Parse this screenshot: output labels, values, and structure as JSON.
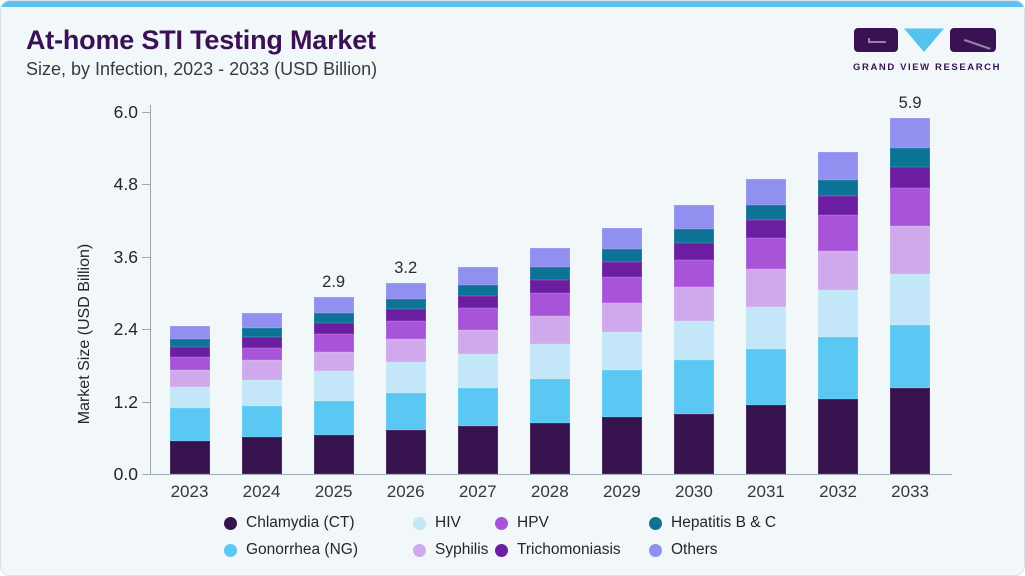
{
  "header": {
    "title": "At-home STI Testing Market",
    "subtitle": "Size, by Infection, 2023 - 2033 (USD Billion)"
  },
  "logo": {
    "text": "GRAND VIEW RESEARCH"
  },
  "chart_data": {
    "type": "bar",
    "stacked": true,
    "title": "At-home STI Testing Market Size, by Infection, 2023 - 2033 (USD Billion)",
    "xlabel": "",
    "ylabel": "Market Size (USD Billion)",
    "ylim": [
      0,
      6.0
    ],
    "yticks": [
      "0.0",
      "1.2",
      "2.4",
      "3.6",
      "4.8",
      "6.0"
    ],
    "grid": false,
    "legend_position": "bottom",
    "categories": [
      "2023",
      "2024",
      "2025",
      "2026",
      "2027",
      "2028",
      "2029",
      "2030",
      "2031",
      "2032",
      "2033"
    ],
    "series": [
      {
        "name": "Chlamydia (CT)",
        "color": "#36124E",
        "values": [
          0.55,
          0.61,
          0.65,
          0.73,
          0.79,
          0.84,
          0.94,
          1.0,
          1.14,
          1.24,
          1.43
        ]
      },
      {
        "name": "Gonorrhea (NG)",
        "color": "#5AC8F3",
        "values": [
          0.54,
          0.51,
          0.56,
          0.61,
          0.63,
          0.74,
          0.78,
          0.88,
          0.93,
          1.02,
          1.03
        ]
      },
      {
        "name": "HIV",
        "color": "#C3E7F8",
        "values": [
          0.35,
          0.43,
          0.5,
          0.51,
          0.56,
          0.58,
          0.63,
          0.66,
          0.7,
          0.78,
          0.85
        ]
      },
      {
        "name": "Syphilis",
        "color": "#D0A9EC",
        "values": [
          0.28,
          0.33,
          0.31,
          0.38,
          0.41,
          0.46,
          0.48,
          0.55,
          0.63,
          0.65,
          0.79
        ]
      },
      {
        "name": "HPV",
        "color": "#A854D8",
        "values": [
          0.21,
          0.2,
          0.3,
          0.3,
          0.36,
          0.38,
          0.43,
          0.46,
          0.51,
          0.59,
          0.64
        ]
      },
      {
        "name": "Trichomoniasis",
        "color": "#6B1EA2",
        "values": [
          0.18,
          0.18,
          0.18,
          0.2,
          0.2,
          0.22,
          0.25,
          0.27,
          0.3,
          0.32,
          0.35
        ]
      },
      {
        "name": "Hepatitis B & C",
        "color": "#0D7396",
        "values": [
          0.13,
          0.15,
          0.17,
          0.17,
          0.18,
          0.2,
          0.22,
          0.24,
          0.25,
          0.27,
          0.31
        ]
      },
      {
        "name": "Others",
        "color": "#9190F1",
        "values": [
          0.21,
          0.26,
          0.26,
          0.26,
          0.3,
          0.33,
          0.35,
          0.39,
          0.43,
          0.46,
          0.5
        ]
      }
    ],
    "bar_total_labels": {
      "2025": "2.9",
      "2026": "3.2",
      "2033": "5.9"
    }
  },
  "legend": {
    "columns": [
      [
        "Chlamydia (CT)",
        "Gonorrhea (NG)"
      ],
      [
        "HIV",
        "Syphilis"
      ],
      [
        "HPV",
        "Trichomoniasis"
      ],
      [
        "Hepatitis B & C",
        "Others"
      ]
    ]
  }
}
